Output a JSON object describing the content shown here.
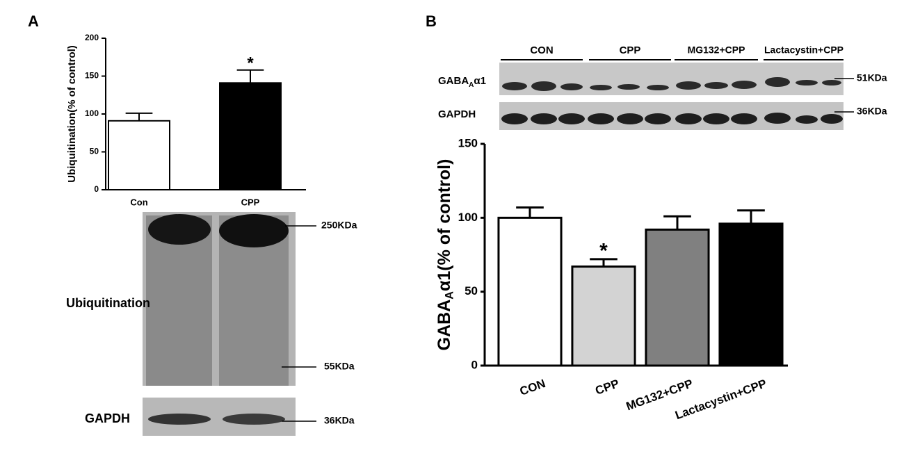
{
  "panel_labels": [
    "A",
    "B"
  ],
  "chart_data": [
    {
      "type": "bar",
      "ylabel": [
        "Ubiquitination(% of control)"
      ],
      "categories": [
        "Con",
        "CPP"
      ],
      "values": [
        91,
        141
      ],
      "errors": [
        10,
        17
      ],
      "colors": [
        "#ffffff",
        "#000000"
      ],
      "significance": [
        null,
        "*"
      ],
      "ylim": [
        0,
        200
      ],
      "yticks": [
        0,
        50,
        100,
        150,
        200
      ],
      "blot_labels": {
        "rows": [
          "Ubiquitination",
          "GAPDH"
        ],
        "sizes": [
          "250KDa",
          "55KDa",
          "36KDa"
        ]
      }
    },
    {
      "type": "bar",
      "ylabel": [
        "GABA",
        "A",
        "α1(% of control)"
      ],
      "categories": [
        "CON",
        "CPP",
        "MG132+CPP",
        "Lactacystin+CPP"
      ],
      "values": [
        100,
        67,
        92,
        96
      ],
      "errors": [
        7,
        5,
        9,
        9
      ],
      "colors": [
        "#ffffff",
        "#d3d3d3",
        "#808080",
        "#000000"
      ],
      "significance": [
        null,
        "*",
        null,
        null
      ],
      "ylim": [
        0,
        150
      ],
      "yticks": [
        0,
        50,
        100,
        150
      ],
      "blot_labels": {
        "groups": [
          "CON",
          "CPP",
          "MG132+CPP",
          "Lactacystin+CPP"
        ],
        "rows": [
          [
            "GABA",
            "A",
            "α1"
          ],
          "GAPDH"
        ],
        "sizes": [
          "51KDa",
          "36KDa"
        ]
      }
    }
  ]
}
